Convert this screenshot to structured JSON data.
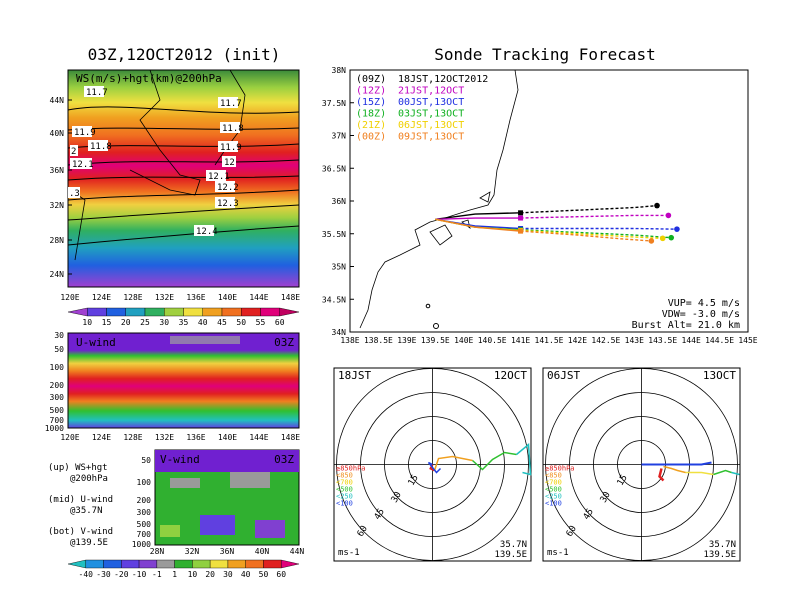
{
  "left_title": "03Z,12OCT2012 (init)",
  "right_title": "Sonde Tracking Forecast",
  "map_panel": {
    "label": "WS(m/s)+hgt(km)@200hPa",
    "lat_ticks": [
      "44N",
      "40N",
      "36N",
      "32N",
      "28N",
      "24N"
    ],
    "lon_ticks": [
      "120E",
      "124E",
      "128E",
      "132E",
      "136E",
      "140E",
      "144E",
      "148E"
    ],
    "contours": [
      "11.7",
      "11.7",
      "11.8",
      "11.8",
      "11.9",
      "11.9",
      "12",
      "12",
      "12.1",
      "12.1",
      "12.2",
      "12.3",
      "12.4",
      "2",
      ".3"
    ],
    "colorbar": [
      "10",
      "15",
      "20",
      "25",
      "30",
      "35",
      "40",
      "45",
      "50",
      "55",
      "60"
    ]
  },
  "u_panel": {
    "label": "U-wind",
    "time": "03Z",
    "y_ticks": [
      "30",
      "50",
      "100",
      "200",
      "300",
      "500",
      "700",
      "1000"
    ],
    "x_ticks": [
      "120E",
      "124E",
      "128E",
      "132E",
      "136E",
      "140E",
      "144E",
      "148E"
    ]
  },
  "v_panel": {
    "label": "V-wind",
    "time": "03Z",
    "y_ticks": [
      "50",
      "100",
      "200",
      "300",
      "500",
      "700",
      "1000"
    ],
    "x_ticks": [
      "28N",
      "32N",
      "36N",
      "40N",
      "44N"
    ],
    "colorbar": [
      "-40",
      "-30",
      "-20",
      "-10",
      "-1",
      "1",
      "10",
      "20",
      "30",
      "40",
      "50",
      "60"
    ]
  },
  "notes": {
    "up": "(up) WS+hgt",
    "up2": "@200hPa",
    "mid": "(mid) U-wind",
    "mid2": "@35.7N",
    "bot": "(bot) V-wind",
    "bot2": "@139.5E"
  },
  "track_panel": {
    "lat_ticks": [
      "38N",
      "37.5N",
      "37N",
      "36.5N",
      "36N",
      "35.5N",
      "35N",
      "34.5N",
      "34N"
    ],
    "lon_ticks": [
      "138E",
      "138.5E",
      "139E",
      "139.5E",
      "140E",
      "140.5E",
      "141E",
      "141.5E",
      "142E",
      "142.5E",
      "143E",
      "143.5E",
      "144E",
      "144.5E",
      "145E"
    ],
    "legend": [
      {
        "utc": "(09Z)",
        "jst": "18JST,12OCT2012",
        "color": "#000000"
      },
      {
        "utc": "(12Z)",
        "jst": "21JST,12OCT",
        "color": "#c000c0"
      },
      {
        "utc": "(15Z)",
        "jst": "00JST,13OCT",
        "color": "#2030e0"
      },
      {
        "utc": "(18Z)",
        "jst": "03JST,13OCT",
        "color": "#10b020"
      },
      {
        "utc": "(21Z)",
        "jst": "06JST,13OCT",
        "color": "#f0d000"
      },
      {
        "utc": "(00Z)",
        "jst": "09JST,13OCT",
        "color": "#f08020"
      }
    ],
    "vup": "VUP= 4.5 m/s",
    "vdw": "VDW= -3.0 m/s",
    "burst": "Burst Alt= 21.0 km"
  },
  "hodo_left": {
    "time": "18JST",
    "date": "12OCT",
    "lat": "35.7N",
    "lon": "139.5E",
    "unit": "ms-1",
    "rings": [
      "15",
      "30",
      "45",
      "60"
    ]
  },
  "hodo_right": {
    "time": "06JST",
    "date": "13OCT",
    "lat": "35.7N",
    "lon": "139.5E",
    "unit": "ms-1",
    "rings": [
      "15",
      "30",
      "45",
      "60"
    ]
  },
  "hodo_legend": [
    {
      "label": "≥850hPa",
      "color": "#e02020"
    },
    {
      "label": "<850",
      "color": "#f09020"
    },
    {
      "label": "<700",
      "color": "#f0d000"
    },
    {
      "label": "<500",
      "color": "#30c030"
    },
    {
      "label": "<250",
      "color": "#20c0c0"
    },
    {
      "label": "<100",
      "color": "#2040e0"
    }
  ],
  "chart_data": {
    "type": "line",
    "title": "Sonde Tracking Forecast",
    "series": [
      {
        "name": "(09Z) 18JST,12OCT2012",
        "x": [
          139.5,
          140.2,
          141.0,
          142.0,
          143.0,
          143.4
        ],
        "y": [
          35.72,
          35.8,
          35.82,
          35.86,
          35.9,
          35.93
        ]
      },
      {
        "name": "(12Z) 21JST,12OCT",
        "x": [
          139.5,
          140.2,
          141.0,
          142.0,
          143.0,
          143.6
        ],
        "y": [
          35.72,
          35.74,
          35.74,
          35.76,
          35.78,
          35.78
        ]
      },
      {
        "name": "(15Z) 00JST,13OCT",
        "x": [
          139.5,
          140.2,
          141.0,
          142.0,
          143.0,
          143.75
        ],
        "y": [
          35.72,
          35.62,
          35.58,
          35.58,
          35.58,
          35.57
        ]
      },
      {
        "name": "(18Z) 03JST,13OCT",
        "x": [
          139.5,
          140.2,
          141.0,
          142.0,
          143.0,
          143.65
        ],
        "y": [
          35.72,
          35.6,
          35.56,
          35.52,
          35.48,
          35.44
        ]
      },
      {
        "name": "(21Z) 06JST,13OCT",
        "x": [
          139.5,
          140.2,
          141.0,
          142.0,
          143.0,
          143.5
        ],
        "y": [
          35.72,
          35.6,
          35.55,
          35.5,
          35.45,
          35.43
        ]
      },
      {
        "name": "(00Z) 09JST,13OCT",
        "x": [
          139.5,
          140.2,
          141.0,
          142.0,
          142.8,
          143.3
        ],
        "y": [
          35.72,
          35.6,
          35.54,
          35.48,
          35.42,
          35.39
        ]
      }
    ],
    "xlim": [
      138,
      145
    ],
    "ylim": [
      34,
      38
    ]
  }
}
